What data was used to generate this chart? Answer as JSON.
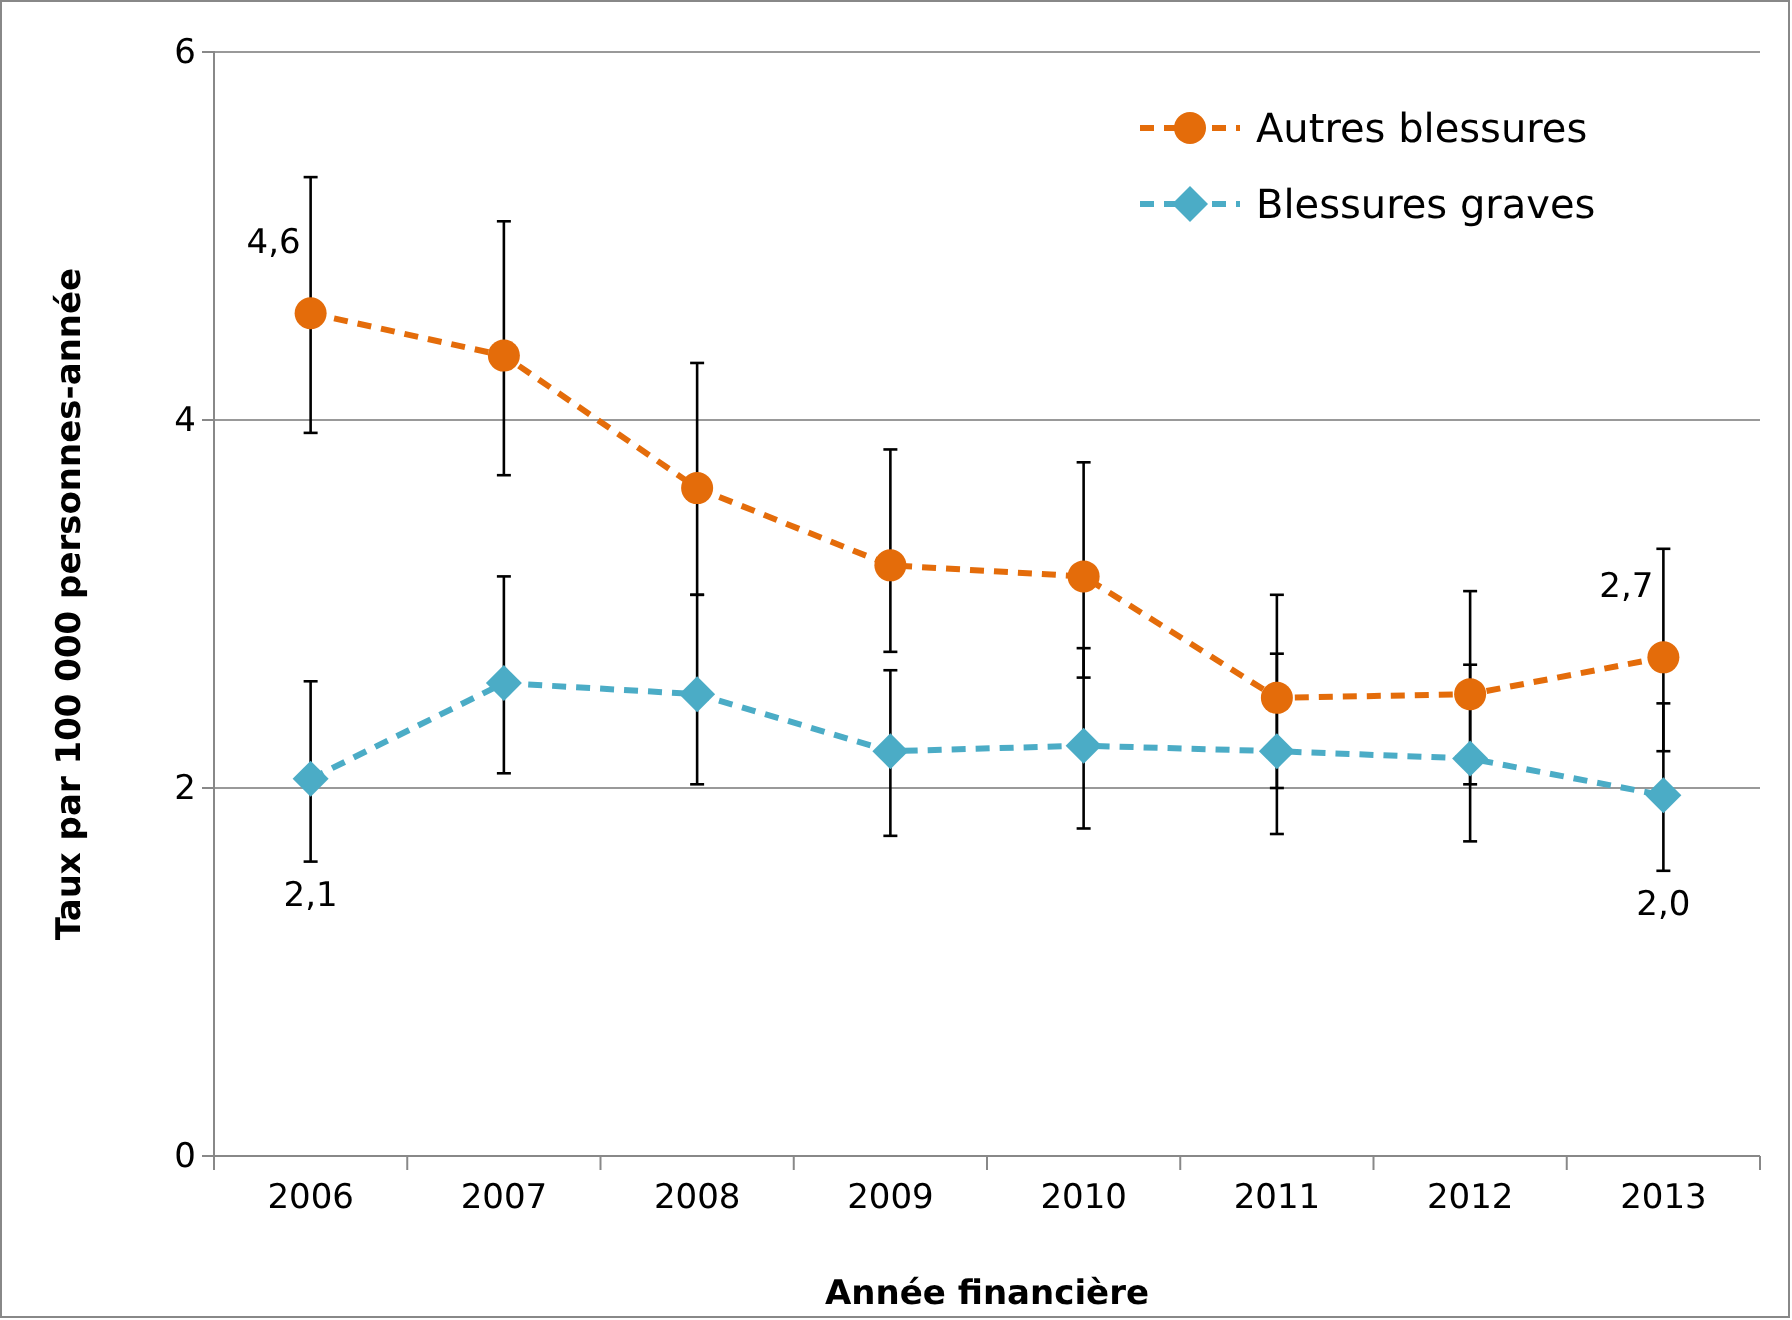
{
  "chart_data": {
    "type": "line",
    "xlabel": "Année financière",
    "ylabel": "Taux par 100 000 personnes-année",
    "categories": [
      "2006",
      "2007",
      "2008",
      "2009",
      "2010",
      "2011",
      "2012",
      "2013"
    ],
    "ylim": [
      0,
      6
    ],
    "yticks": [
      0,
      2,
      4,
      6
    ],
    "grid": "y",
    "legend": "top right",
    "line_style": "dashed",
    "series": [
      {
        "name": "Autres blessures",
        "color": "#e46c0a",
        "marker": "circle",
        "values": [
          4.58,
          4.35,
          3.63,
          3.21,
          3.15,
          2.49,
          2.51,
          2.71
        ],
        "errors": [
          [
            3.93,
            5.32
          ],
          [
            3.7,
            5.08
          ],
          [
            3.05,
            4.31
          ],
          [
            2.74,
            3.84
          ],
          [
            2.6,
            3.77
          ],
          [
            2.0,
            3.05
          ],
          [
            2.02,
            3.07
          ],
          [
            2.2,
            3.3
          ]
        ],
        "value_labels": [
          "4,6",
          null,
          null,
          null,
          null,
          null,
          null,
          "2,7"
        ]
      },
      {
        "name": "Blessures graves",
        "color": "#4bacc6",
        "marker": "diamond",
        "values": [
          2.05,
          2.57,
          2.51,
          2.2,
          2.23,
          2.2,
          2.16,
          1.96
        ],
        "errors": [
          [
            1.6,
            2.58
          ],
          [
            2.08,
            3.15
          ],
          [
            2.02,
            3.05
          ],
          [
            1.74,
            2.64
          ],
          [
            1.78,
            2.76
          ],
          [
            1.75,
            2.73
          ],
          [
            1.71,
            2.67
          ],
          [
            1.55,
            2.46
          ]
        ],
        "value_labels": [
          "2,1",
          null,
          null,
          null,
          null,
          null,
          null,
          "2,0"
        ]
      }
    ]
  }
}
